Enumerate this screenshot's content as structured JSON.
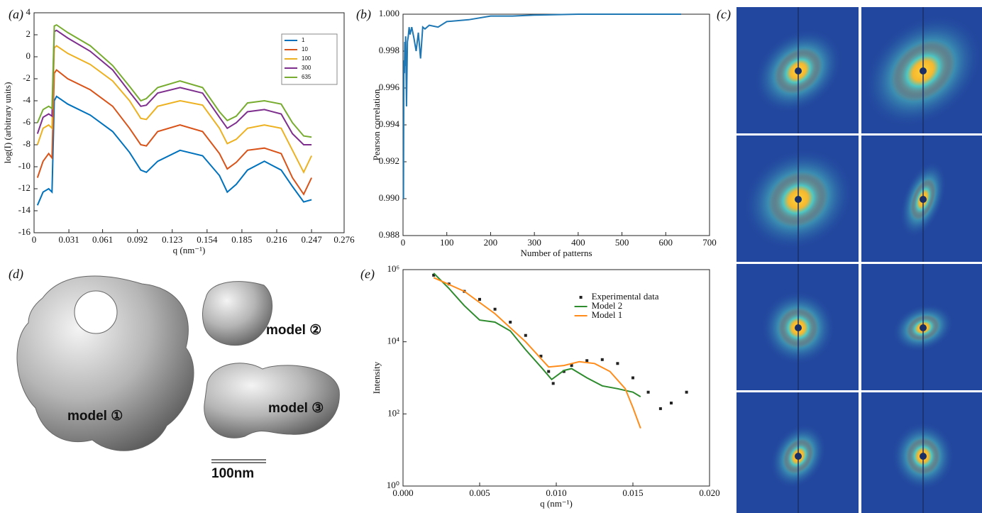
{
  "panel_labels": [
    "(a)",
    "(b)",
    "(c)",
    "(d)",
    "(e)"
  ],
  "model_labels": [
    "model ①",
    "model ②",
    "model ③"
  ],
  "scale_bar": "100nm",
  "chart_data": [
    {
      "type": "line",
      "xlabel": "q (nm⁻¹)",
      "ylabel": "log(I) (arbitrary units)",
      "xlim": [
        0,
        0.276
      ],
      "xticks": [
        0,
        0.031,
        0.061,
        0.092,
        0.123,
        0.154,
        0.185,
        0.216,
        0.247,
        0.276
      ],
      "ylim": [
        -16,
        4
      ],
      "yticks": [
        -16,
        -14,
        -12,
        -10,
        -8,
        -6,
        -4,
        -2,
        0,
        2,
        4
      ],
      "legend": "upper right",
      "legend_frame": true,
      "x": [
        0.003,
        0.008,
        0.013,
        0.016,
        0.018,
        0.02,
        0.03,
        0.05,
        0.07,
        0.085,
        0.095,
        0.1,
        0.11,
        0.13,
        0.15,
        0.165,
        0.172,
        0.18,
        0.19,
        0.205,
        0.22,
        0.23,
        0.24,
        0.247
      ],
      "series": [
        {
          "name": "1",
          "color": "#0072bd",
          "values": [
            -13.5,
            -12.3,
            -12,
            -12.3,
            -4,
            -3.6,
            -4.3,
            -5.3,
            -6.8,
            -8.7,
            -10.3,
            -10.5,
            -9.5,
            -8.5,
            -9,
            -10.8,
            -12.3,
            -11.6,
            -10.3,
            -9.5,
            -10.3,
            -11.8,
            -13.2,
            -13
          ]
        },
        {
          "name": "10",
          "color": "#d95319",
          "values": [
            -11,
            -9.5,
            -8.8,
            -9.2,
            -1.5,
            -1.2,
            -2,
            -3,
            -4.5,
            -6.5,
            -8,
            -8.1,
            -6.8,
            -6.2,
            -6.8,
            -8.8,
            -10.2,
            -9.6,
            -8.5,
            -8.3,
            -8.8,
            -11,
            -12.5,
            -11
          ]
        },
        {
          "name": "100",
          "color": "#edb120",
          "values": [
            -8,
            -6.5,
            -6.2,
            -6.5,
            0.8,
            1,
            0.3,
            -0.7,
            -2.2,
            -4,
            -5.6,
            -5.7,
            -4.5,
            -4,
            -4.4,
            -6.5,
            -7.9,
            -7.5,
            -6.5,
            -6.2,
            -6.5,
            -8.5,
            -10.5,
            -9
          ]
        },
        {
          "name": "300",
          "color": "#7e2f8e",
          "values": [
            -7,
            -5.5,
            -5.2,
            -5.4,
            2.3,
            2.4,
            1.7,
            0.5,
            -1.2,
            -3.2,
            -4.5,
            -4.4,
            -3.3,
            -2.8,
            -3.3,
            -5.5,
            -6.5,
            -6,
            -5,
            -4.8,
            -5.2,
            -7,
            -8,
            -8
          ]
        },
        {
          "name": "635",
          "color": "#77ac30",
          "values": [
            -6,
            -4.8,
            -4.5,
            -4.7,
            2.8,
            2.9,
            2.2,
            1,
            -0.8,
            -2.7,
            -4,
            -3.8,
            -2.8,
            -2.2,
            -2.8,
            -5,
            -5.8,
            -5.4,
            -4.2,
            -4,
            -4.3,
            -6,
            -7.2,
            -7.3
          ]
        }
      ]
    },
    {
      "type": "line",
      "xlabel": "Number of patterns",
      "ylabel": "Pearson correlation",
      "xlim": [
        0,
        700
      ],
      "xticks": [
        0,
        100,
        200,
        300,
        400,
        500,
        600,
        700
      ],
      "ylim": [
        0.988,
        1
      ],
      "yticks": [
        0.988,
        {
          "value": 0.99,
          "label": "0.990"
        },
        0.992,
        0.994,
        0.996,
        0.998,
        {
          "value": 1,
          "label": "1.000"
        }
      ],
      "x": [
        1,
        2,
        3,
        4,
        5,
        6,
        8,
        10,
        12,
        14,
        16,
        20,
        25,
        30,
        35,
        40,
        45,
        50,
        60,
        80,
        100,
        150,
        200,
        250,
        300,
        400,
        500,
        635
      ],
      "series": [
        {
          "color": "#1f77b4",
          "values": [
            0.99,
            0.9975,
            0.9968,
            0.9985,
            0.9972,
            0.9988,
            0.995,
            0.9985,
            0.9988,
            0.9993,
            0.9989,
            0.9993,
            0.9987,
            0.998,
            0.999,
            0.9976,
            0.9993,
            0.9992,
            0.9994,
            0.9993,
            0.9996,
            0.9997,
            0.9999,
            0.9999,
            0.99995,
            1,
            1,
            1
          ]
        }
      ]
    },
    {
      "type": "line",
      "xlabel": "q (nm⁻¹)",
      "ylabel": "Intensity",
      "log_y": true,
      "xlim": [
        0,
        0.02
      ],
      "xticks": [
        {
          "value": 0,
          "label": "0.000"
        },
        {
          "value": 0.005,
          "label": "0.005"
        },
        {
          "value": 0.01,
          "label": "0.010"
        },
        {
          "value": 0.015,
          "label": "0.015"
        },
        {
          "value": 0.02,
          "label": "0.020"
        }
      ],
      "ylim": [
        1,
        1000000
      ],
      "yticks": [
        {
          "value": 1,
          "label": "10⁰"
        },
        {
          "value": 100,
          "label": "10²"
        },
        {
          "value": 10000,
          "label": "10⁴"
        },
        {
          "value": 1000000,
          "label": "10⁶"
        }
      ],
      "legend": "upper center",
      "legend_frame": false,
      "series": [
        {
          "name": "Experimental data",
          "color": "#222222",
          "mode": "markers",
          "x": [
            0.002,
            0.003,
            0.004,
            0.005,
            0.006,
            0.007,
            0.008,
            0.009,
            0.0095,
            0.0098,
            0.0105,
            0.011,
            0.012,
            0.013,
            0.014,
            0.015,
            0.016,
            0.0168,
            0.0175,
            0.0185
          ],
          "values": [
            700000,
            400000,
            250000,
            150000,
            80000,
            35000,
            15000,
            4000,
            1500,
            700,
            1500,
            2200,
            3000,
            3200,
            2500,
            1000,
            400,
            140,
            200,
            400
          ]
        },
        {
          "name": "Model 2",
          "color": "#2e8b2e",
          "x": [
            0.002,
            0.003,
            0.004,
            0.005,
            0.006,
            0.007,
            0.008,
            0.009,
            0.0097,
            0.0105,
            0.011,
            0.012,
            0.013,
            0.014,
            0.015,
            0.0155
          ],
          "values": [
            800000,
            300000,
            100000,
            40000,
            35000,
            20000,
            6000,
            2000,
            900,
            1600,
            1800,
            1000,
            600,
            500,
            400,
            300
          ]
        },
        {
          "name": "Model 1",
          "color": "#ff8c1a",
          "x": [
            0.002,
            0.004,
            0.006,
            0.008,
            0.0095,
            0.0105,
            0.0115,
            0.0125,
            0.0135,
            0.0145,
            0.015,
            0.0155
          ],
          "values": [
            600000,
            250000,
            60000,
            10000,
            2000,
            2200,
            2800,
            2500,
            1500,
            500,
            150,
            40
          ]
        }
      ]
    }
  ]
}
